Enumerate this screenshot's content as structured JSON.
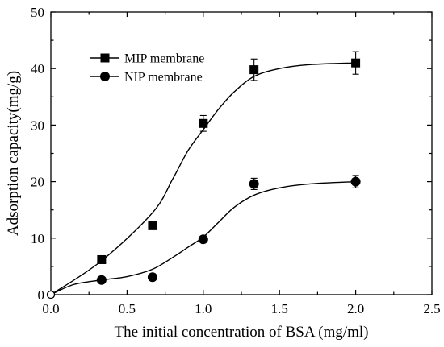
{
  "chart_data": {
    "type": "scatter",
    "xlabel": "The initial concentration of BSA (mg/ml)",
    "ylabel": "Adsorption capacity(mg/g)",
    "xlim": [
      0,
      2.5
    ],
    "ylim": [
      0,
      50
    ],
    "xticks": [
      0,
      0.5,
      1.0,
      1.5,
      2.0,
      2.5
    ],
    "xtick_labels": [
      "0.0",
      "0.5",
      "1.0",
      "1.5",
      "2.0",
      "2.5"
    ],
    "yticks": [
      0,
      10,
      20,
      30,
      40,
      50
    ],
    "ytick_labels": [
      "0",
      "10",
      "20",
      "30",
      "40",
      "50"
    ],
    "grid": false,
    "legend_position": "top-left",
    "series": [
      {
        "name": "MIP membrane",
        "marker": "square",
        "x": [
          0,
          0.333,
          0.667,
          1.0,
          1.333,
          2.0
        ],
        "y": [
          0,
          6.2,
          12.2,
          30.3,
          39.8,
          41.0
        ],
        "error": [
          0,
          0,
          0,
          1.4,
          1.9,
          2.0
        ],
        "fit_curve": [
          [
            0,
            0
          ],
          [
            0.333,
            6.0
          ],
          [
            0.667,
            14.5
          ],
          [
            0.8,
            20.5
          ],
          [
            0.9,
            25.5
          ],
          [
            1.0,
            29.2
          ],
          [
            1.1,
            32.8
          ],
          [
            1.2,
            35.8
          ],
          [
            1.333,
            38.6
          ],
          [
            1.5,
            40.0
          ],
          [
            1.7,
            40.7
          ],
          [
            2.0,
            41.0
          ]
        ]
      },
      {
        "name": "NIP membrane",
        "marker": "circle",
        "x": [
          0,
          0.333,
          0.667,
          1.0,
          1.333,
          2.0
        ],
        "y": [
          0,
          2.6,
          3.1,
          9.8,
          19.6,
          20.0
        ],
        "error": [
          0,
          0,
          0,
          0,
          1.0,
          1.1
        ],
        "fit_curve": [
          [
            0,
            0
          ],
          [
            0.15,
            1.8
          ],
          [
            0.333,
            2.6
          ],
          [
            0.5,
            3.2
          ],
          [
            0.667,
            4.5
          ],
          [
            0.8,
            6.6
          ],
          [
            0.9,
            8.4
          ],
          [
            1.0,
            10.2
          ],
          [
            1.1,
            12.8
          ],
          [
            1.2,
            15.4
          ],
          [
            1.333,
            17.6
          ],
          [
            1.5,
            18.9
          ],
          [
            1.7,
            19.6
          ],
          [
            2.0,
            20.0
          ]
        ]
      }
    ]
  }
}
